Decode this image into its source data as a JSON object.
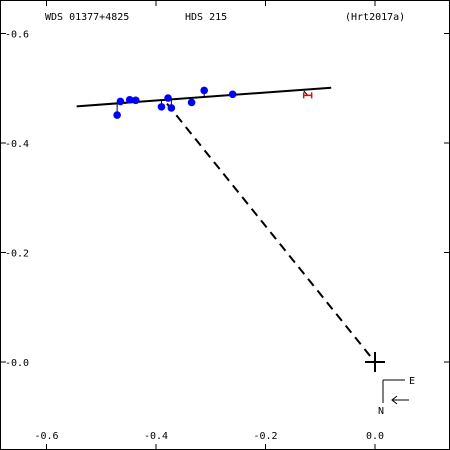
{
  "header": {
    "left": "WDS 01377+4825",
    "center": "HDS 215",
    "right": "(Hrt2017a)"
  },
  "chart_data": {
    "type": "scatter",
    "xlim": [
      -0.6,
      0.1
    ],
    "ylim": [
      -0.1,
      0.6
    ],
    "x_ticks": [
      {
        "value": -0.6,
        "label": "-0.6"
      },
      {
        "value": -0.4,
        "label": "-0.4"
      },
      {
        "value": -0.2,
        "label": "-0.2"
      },
      {
        "value": 0.0,
        "label": "0.0"
      }
    ],
    "y_ticks": [
      {
        "value": 0.6,
        "label": "-0.6"
      },
      {
        "value": 0.4,
        "label": "-0.4"
      },
      {
        "value": 0.2,
        "label": "-0.2"
      },
      {
        "value": 0.0,
        "label": "-0.0"
      }
    ],
    "observations": [
      {
        "x": -0.471,
        "y": 0.451
      },
      {
        "x": -0.465,
        "y": 0.476
      },
      {
        "x": -0.448,
        "y": 0.479
      },
      {
        "x": -0.437,
        "y": 0.478
      },
      {
        "x": -0.39,
        "y": 0.466
      },
      {
        "x": -0.378,
        "y": 0.482
      },
      {
        "x": -0.372,
        "y": 0.464
      },
      {
        "x": -0.335,
        "y": 0.474
      },
      {
        "x": -0.312,
        "y": 0.496
      },
      {
        "x": -0.26,
        "y": 0.489
      }
    ],
    "red_observation": {
      "x": -0.123,
      "y": 0.487
    },
    "orbit_line": {
      "x1": -0.545,
      "y1": 0.467,
      "x2": -0.08,
      "y2": 0.501
    },
    "dashed_line": {
      "x1": -0.38,
      "y1": 0.472,
      "x2": 0.0,
      "y2": 0.0
    },
    "primary": {
      "x": 0.0,
      "y": 0.0
    },
    "colors": {
      "observation": "#0000ff",
      "red": "#ff0000",
      "line": "#000000"
    },
    "compass": {
      "east": "E",
      "north": "N"
    }
  }
}
